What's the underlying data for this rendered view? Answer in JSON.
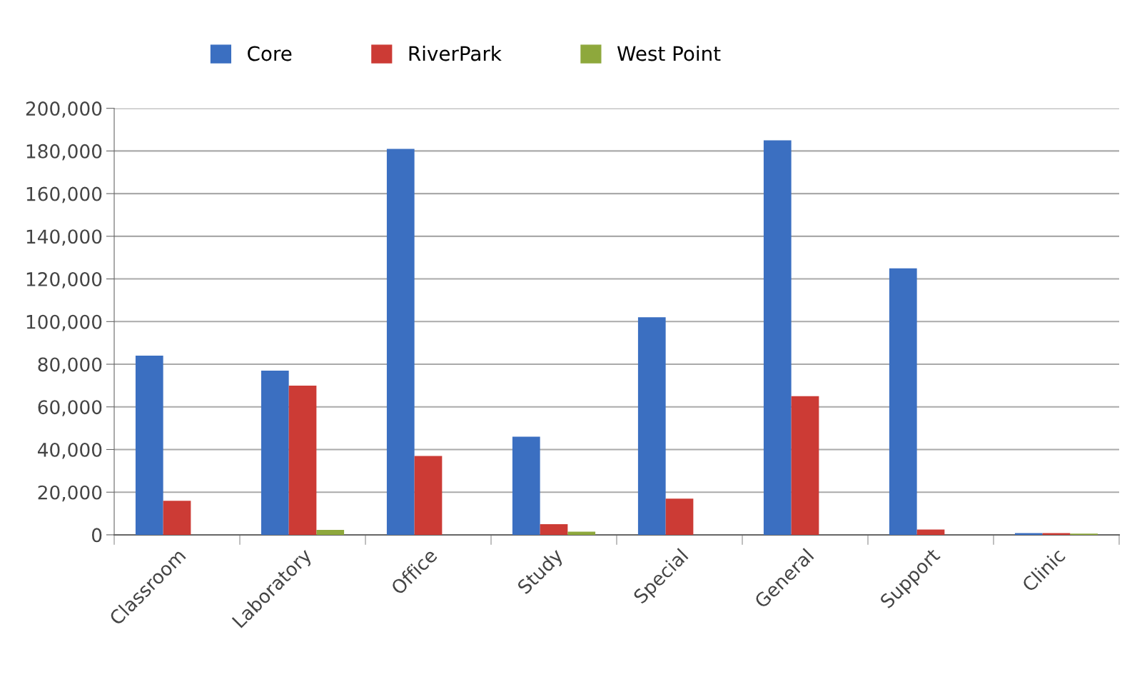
{
  "chart_data": {
    "type": "bar",
    "categories": [
      "Classroom",
      "Laboratory",
      "Office",
      "Study",
      "Special",
      "General",
      "Support",
      "Clinic"
    ],
    "series": [
      {
        "name": "Core",
        "color": "#3b6fc1",
        "values": [
          84000,
          77000,
          181000,
          46000,
          102000,
          185000,
          125000,
          800
        ]
      },
      {
        "name": "RiverPark",
        "color": "#cc3b35",
        "values": [
          16000,
          70000,
          37000,
          5000,
          17000,
          65000,
          2500,
          800
        ]
      },
      {
        "name": "West Point",
        "color": "#8ea83c",
        "values": [
          0,
          2300,
          0,
          1500,
          0,
          0,
          0,
          600
        ]
      }
    ],
    "ylim": [
      0,
      200000
    ],
    "yticks": [
      {
        "value": 0,
        "label": "0"
      },
      {
        "value": 20000,
        "label": "20,000"
      },
      {
        "value": 40000,
        "label": "40,000"
      },
      {
        "value": 60000,
        "label": "60,000"
      },
      {
        "value": 80000,
        "label": "80,000"
      },
      {
        "value": 100000,
        "label": "100,000"
      },
      {
        "value": 120000,
        "label": "120,000"
      },
      {
        "value": 140000,
        "label": "140,000"
      },
      {
        "value": 160000,
        "label": "160,000"
      },
      {
        "value": 180000,
        "label": "180,000"
      },
      {
        "value": 200000,
        "label": "200,000"
      }
    ],
    "grid": "y",
    "legend": "top"
  }
}
